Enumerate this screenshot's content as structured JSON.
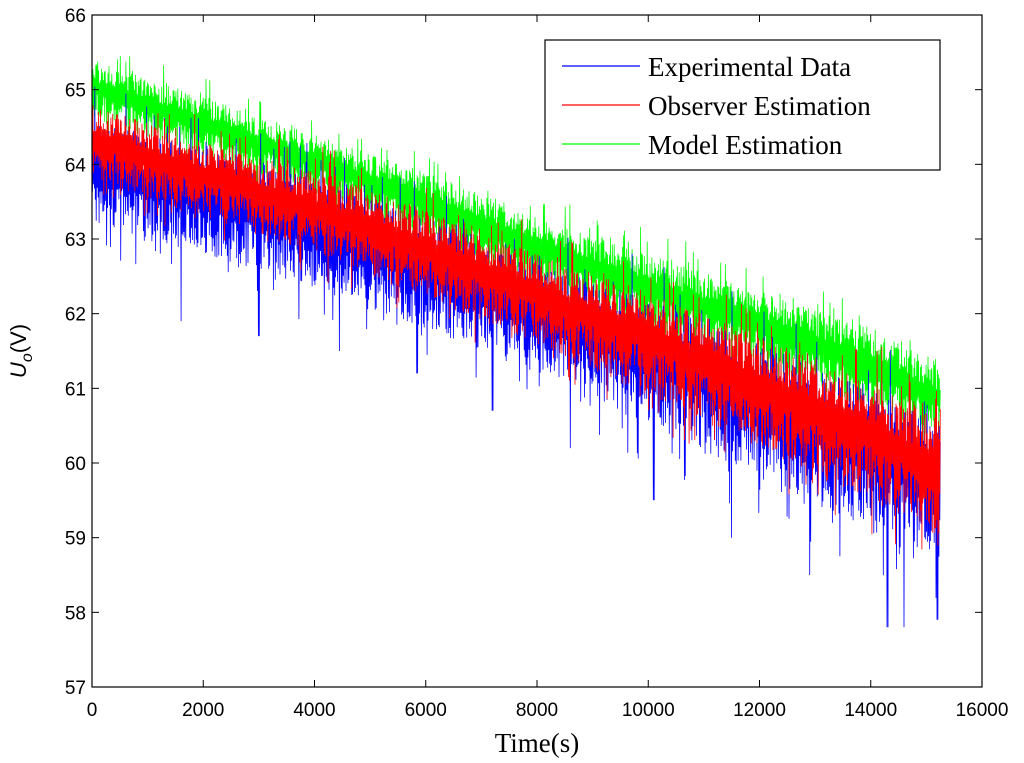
{
  "chart_data": {
    "type": "line",
    "title": "",
    "xlabel": "Time(s)",
    "ylabel_main": "U",
    "ylabel_sub": "o",
    "ylabel_unit": "(V)",
    "xlim": [
      0,
      16000
    ],
    "ylim": [
      57,
      66
    ],
    "xticks": [
      0,
      2000,
      4000,
      6000,
      8000,
      10000,
      12000,
      14000,
      16000
    ],
    "yticks": [
      57,
      58,
      59,
      60,
      61,
      62,
      63,
      64,
      65,
      66
    ],
    "grid": false,
    "legend_position": "top-right",
    "x_end": 15250,
    "series": [
      {
        "name": "Experimental Data",
        "color": "#0000ff",
        "trend_x": [
          0,
          2000,
          4000,
          6000,
          8000,
          10000,
          12000,
          14000,
          15250
        ],
        "upper_envelope": [
          64.6,
          64.2,
          63.8,
          63.3,
          62.7,
          62.2,
          61.6,
          61.0,
          60.5
        ],
        "lower_envelope": [
          63.2,
          62.8,
          62.3,
          61.8,
          61.2,
          60.5,
          59.8,
          59.1,
          58.7
        ],
        "notable_minima": [
          {
            "x": 1600,
            "y": 61.9
          },
          {
            "x": 3000,
            "y": 61.7
          },
          {
            "x": 4450,
            "y": 61.5
          },
          {
            "x": 5850,
            "y": 61.2
          },
          {
            "x": 7200,
            "y": 60.7
          },
          {
            "x": 8600,
            "y": 60.2
          },
          {
            "x": 10100,
            "y": 59.5
          },
          {
            "x": 11500,
            "y": 59.0
          },
          {
            "x": 12900,
            "y": 58.5
          },
          {
            "x": 14300,
            "y": 57.8
          },
          {
            "x": 14600,
            "y": 57.8
          },
          {
            "x": 15200,
            "y": 57.9
          }
        ]
      },
      {
        "name": "Observer Estimation",
        "color": "#ff0000",
        "trend_x": [
          0,
          2000,
          4000,
          6000,
          8000,
          10000,
          12000,
          14000,
          15250
        ],
        "upper_envelope": [
          64.8,
          64.3,
          63.9,
          63.4,
          62.8,
          62.3,
          61.7,
          61.1,
          60.6
        ],
        "lower_envelope": [
          63.8,
          63.3,
          62.8,
          62.2,
          61.6,
          60.9,
          60.2,
          59.5,
          59.0
        ]
      },
      {
        "name": "Model Estimation",
        "color": "#00ff00",
        "trend_x": [
          0,
          2000,
          4000,
          6000,
          8000,
          10000,
          12000,
          14000,
          15250
        ],
        "upper_envelope": [
          65.4,
          64.9,
          64.4,
          63.9,
          63.3,
          62.8,
          62.3,
          61.8,
          61.3
        ],
        "lower_envelope": [
          64.6,
          64.1,
          63.6,
          63.0,
          62.4,
          61.8,
          61.3,
          60.7,
          60.3
        ]
      }
    ]
  }
}
